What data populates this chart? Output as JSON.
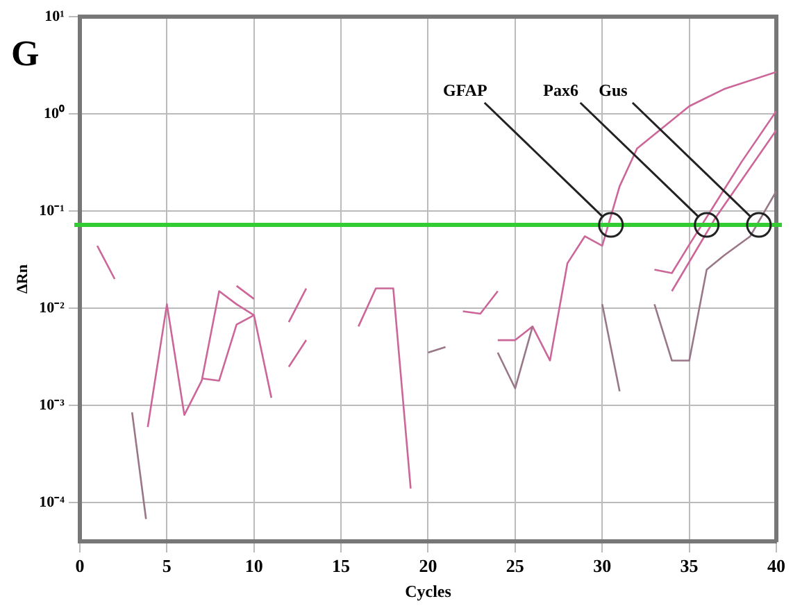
{
  "chart_data": {
    "type": "line",
    "title": "G",
    "xlabel": "Cycles",
    "ylabel": "ΔRn",
    "log": "y",
    "grid": true,
    "legend": false,
    "marker": "none",
    "line_style": "solid",
    "xlim": [
      0,
      40
    ],
    "xticks": [
      0,
      5,
      10,
      15,
      20,
      25,
      30,
      35,
      40
    ],
    "ylim": [
      4e-05,
      10
    ],
    "yticks": [
      {
        "value": 10,
        "label": "10¹"
      },
      {
        "value": 1,
        "label": "10⁰"
      },
      {
        "value": 0.1,
        "label": "10⁻¹"
      },
      {
        "value": 0.01,
        "label": "10⁻²"
      },
      {
        "value": 0.001,
        "label": "10⁻³"
      },
      {
        "value": 0.0001,
        "label": "10⁻⁴"
      }
    ],
    "ref_lines": [
      {
        "axis": "y",
        "value": 0.072,
        "color": "#33cc33"
      }
    ],
    "annotations": [
      {
        "text": "GFAP",
        "x": 30.5,
        "y": 0.072
      },
      {
        "text": "Pax6",
        "x": 36,
        "y": 0.072
      },
      {
        "text": "Gus",
        "x": 39,
        "y": 0.072
      }
    ],
    "series": [
      {
        "color": "#cc6699",
        "x": [
          1,
          2
        ],
        "values": [
          0.044,
          0.02
        ]
      },
      {
        "color": "#997788",
        "x": [
          3,
          3.8
        ],
        "values": [
          0.00085,
          6.8e-05
        ]
      },
      {
        "color": "#cc6699",
        "x": [
          3.9,
          5,
          6,
          7,
          8,
          9,
          10,
          11
        ],
        "values": [
          0.0006,
          0.011,
          0.0008,
          0.0018,
          0.015,
          0.011,
          0.0085,
          0.0012
        ]
      },
      {
        "color": "#cc6699",
        "x": [
          7,
          8,
          9,
          10
        ],
        "values": [
          0.0019,
          0.0018,
          0.0068,
          0.0085
        ]
      },
      {
        "color": "#cc6699",
        "x": [
          9,
          10
        ],
        "values": [
          0.017,
          0.0125
        ]
      },
      {
        "color": "#cc6699",
        "x": [
          12,
          13
        ],
        "values": [
          0.0072,
          0.016
        ]
      },
      {
        "color": "#cc6699",
        "x": [
          12,
          13
        ],
        "values": [
          0.0025,
          0.0047
        ]
      },
      {
        "color": "#cc6699",
        "x": [
          16,
          17,
          18,
          19
        ],
        "values": [
          0.0065,
          0.016,
          0.016,
          0.00014
        ]
      },
      {
        "color": "#997788",
        "x": [
          20,
          21
        ],
        "values": [
          0.0035,
          0.004
        ]
      },
      {
        "color": "#cc6699",
        "x": [
          22,
          23,
          24
        ],
        "values": [
          0.0093,
          0.0088,
          0.015
        ]
      },
      {
        "color": "#997788",
        "x": [
          24,
          25,
          26
        ],
        "values": [
          0.0035,
          0.0015,
          0.0065
        ]
      },
      {
        "color": "#cc6699",
        "x": [
          24,
          25,
          26,
          27,
          28,
          29,
          30,
          31,
          32,
          35,
          37,
          40
        ],
        "values": [
          0.0047,
          0.0047,
          0.0065,
          0.0029,
          0.029,
          0.055,
          0.044,
          0.18,
          0.44,
          1.2,
          1.8,
          2.7
        ]
      },
      {
        "color": "#997788",
        "x": [
          30,
          31
        ],
        "values": [
          0.011,
          0.0014
        ]
      },
      {
        "color": "#cc6699",
        "x": [
          33,
          34,
          35,
          36.5,
          38,
          40
        ],
        "values": [
          0.025,
          0.023,
          0.045,
          0.12,
          0.32,
          1.07
        ]
      },
      {
        "color": "#cc6699",
        "x": [
          34,
          36.5,
          40
        ],
        "values": [
          0.015,
          0.085,
          0.68
        ]
      },
      {
        "color": "#997788",
        "x": [
          33,
          34,
          35,
          36,
          37,
          38.5,
          40
        ],
        "values": [
          0.011,
          0.0029,
          0.0029,
          0.025,
          0.035,
          0.055,
          0.16
        ]
      }
    ]
  }
}
